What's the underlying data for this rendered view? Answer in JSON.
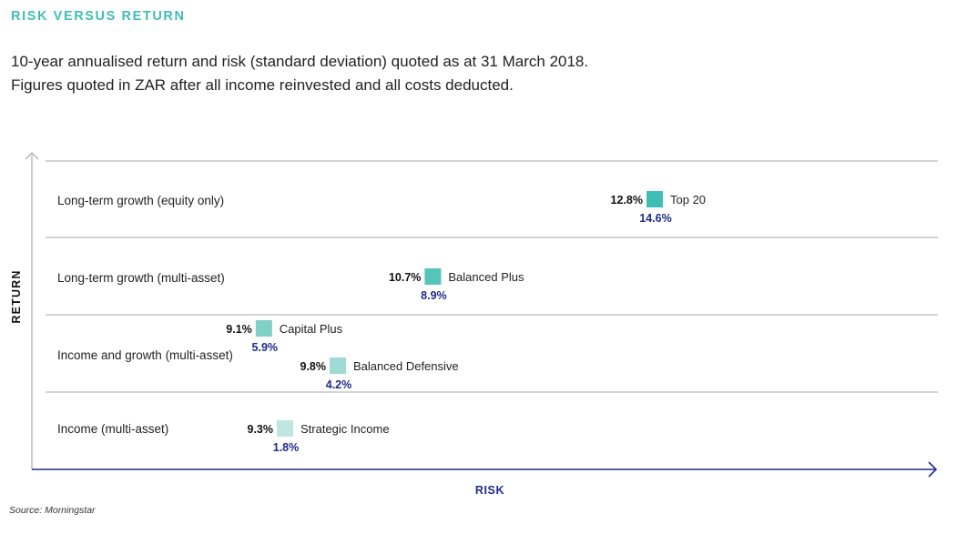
{
  "title": "RISK VERSUS RETURN",
  "subtitle_line1": "10-year annualised return and risk (standard deviation) quoted as at 31 March 2018.",
  "subtitle_line2": "Figures quoted in ZAR after all income reinvested and all costs deducted.",
  "source": "Source: Morningstar",
  "colors": {
    "accent": "#3fbfb4",
    "navy": "#1f2a8a",
    "axis": "#1f2a8a",
    "gridline": "#aaaaaa"
  },
  "chart_data": {
    "type": "scatter",
    "xlabel": "RISK",
    "ylabel": "RETURN",
    "bands": [
      "Long-term growth (equity only)",
      "Long-term growth (multi-asset)",
      "Income and growth (multi-asset)",
      "Income (multi-asset)"
    ],
    "series": [
      {
        "name": "Top 20",
        "band": "Long-term growth (equity only)",
        "risk": "12.8%",
        "return": "14.6%",
        "risk_value": 12.8,
        "return_value": 14.6,
        "color": "#3fbfb4"
      },
      {
        "name": "Balanced Plus",
        "band": "Long-term growth (multi-asset)",
        "risk": "10.7%",
        "return": "8.9%",
        "risk_value": 10.7,
        "return_value": 8.9,
        "color": "#55c4b9"
      },
      {
        "name": "Capital Plus",
        "band": "Income and growth (multi-asset)",
        "risk": "9.1%",
        "return": "5.9%",
        "risk_value": 9.1,
        "return_value": 5.9,
        "color": "#7fd0c7"
      },
      {
        "name": "Balanced Defensive",
        "band": "Income and growth (multi-asset)",
        "risk": "9.8%",
        "return": "4.2%",
        "risk_value": 9.8,
        "return_value": 4.2,
        "color": "#9fdbd4"
      },
      {
        "name": "Strategic Income",
        "band": "Income (multi-asset)",
        "risk": "9.3%",
        "return": "1.8%",
        "risk_value": 9.3,
        "return_value": 1.8,
        "color": "#bfe7e2"
      }
    ]
  }
}
